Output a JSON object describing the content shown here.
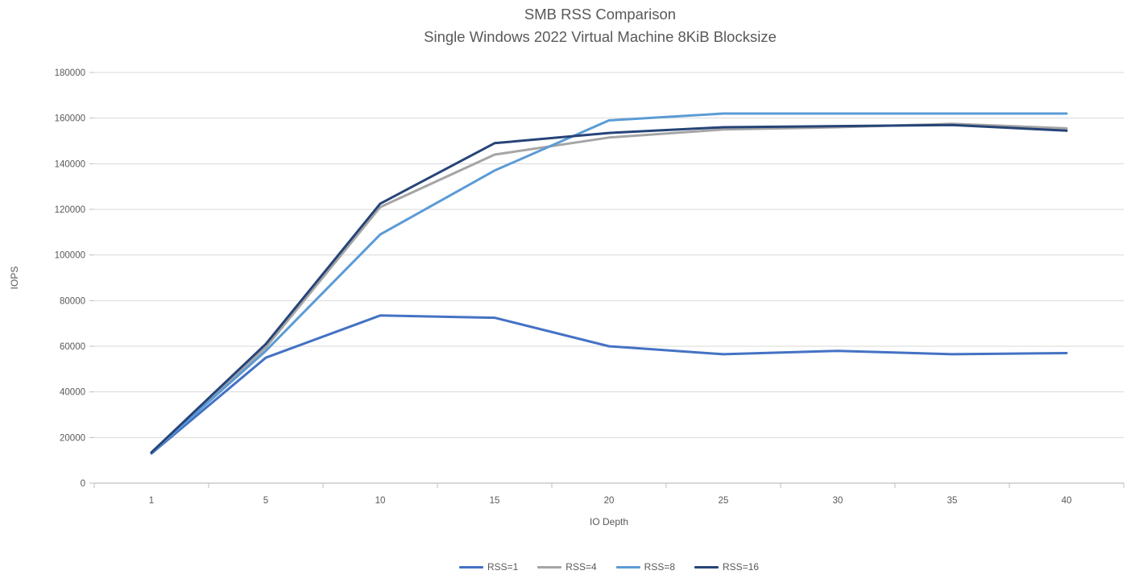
{
  "chart_data": {
    "type": "line",
    "title": "SMB RSS Comparison",
    "subtitle": "Single Windows 2022 Virtual Machine 8KiB Blocksize",
    "xlabel": "IO Depth",
    "ylabel": "IOPS",
    "categories": [
      "1",
      "5",
      "10",
      "15",
      "20",
      "25",
      "30",
      "35",
      "40"
    ],
    "ylim": [
      0,
      180000
    ],
    "ytick_step": 20000,
    "grid": true,
    "legend_position": "bottom",
    "series": [
      {
        "name": "RSS=1",
        "color": "#4472C4",
        "values": [
          13000,
          55000,
          73500,
          72500,
          60000,
          56500,
          58000,
          56500,
          57000
        ]
      },
      {
        "name": "RSS=4",
        "color": "#A5A5A5",
        "values": [
          13500,
          59500,
          121000,
          144000,
          151500,
          155000,
          156000,
          157500,
          155500
        ]
      },
      {
        "name": "RSS=8",
        "color": "#5B9BD5",
        "values": [
          13300,
          58000,
          109000,
          137000,
          159000,
          162000,
          162000,
          162000,
          162000
        ]
      },
      {
        "name": "RSS=16",
        "color": "#264478",
        "values": [
          13500,
          61000,
          122500,
          149000,
          153500,
          156000,
          156500,
          157000,
          154500
        ]
      }
    ],
    "style": {
      "text_color": "#595959",
      "gridline_color": "#D9D9D9",
      "axis_line_color": "#BFBFBF",
      "line_width": 3
    }
  }
}
